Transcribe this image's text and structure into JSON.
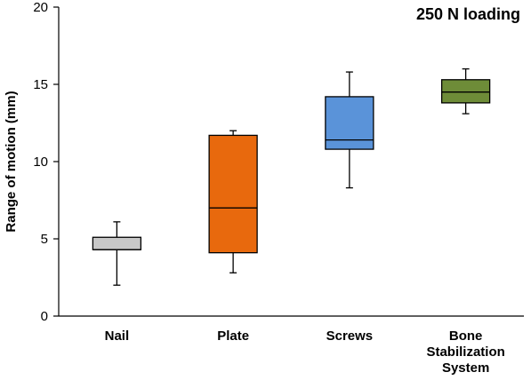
{
  "chart_data": {
    "type": "boxplot",
    "title": "250 N loading",
    "ylabel": "Range of motion (mm)",
    "xlabel": "",
    "ylim": [
      0,
      20
    ],
    "yticks": [
      0,
      5,
      10,
      15,
      20
    ],
    "grid": false,
    "categories": [
      {
        "lines": [
          "Nail"
        ]
      },
      {
        "lines": [
          "Plate"
        ]
      },
      {
        "lines": [
          "Screws"
        ]
      },
      {
        "lines": [
          "Bone",
          "Stabilization",
          "System"
        ]
      }
    ],
    "boxes": [
      {
        "min": 2.0,
        "q1": 4.3,
        "median": 4.3,
        "q3": 5.1,
        "max": 6.1,
        "color": "#c8c8c8"
      },
      {
        "min": 2.8,
        "q1": 4.1,
        "median": 7.0,
        "q3": 11.7,
        "max": 12.0,
        "color": "#e8690d"
      },
      {
        "min": 8.3,
        "q1": 10.8,
        "median": 11.4,
        "q3": 14.2,
        "max": 15.8,
        "color": "#5a93d9"
      },
      {
        "min": 13.1,
        "q1": 13.8,
        "median": 14.5,
        "q3": 15.3,
        "max": 16.0,
        "color": "#6e8c38"
      }
    ]
  }
}
